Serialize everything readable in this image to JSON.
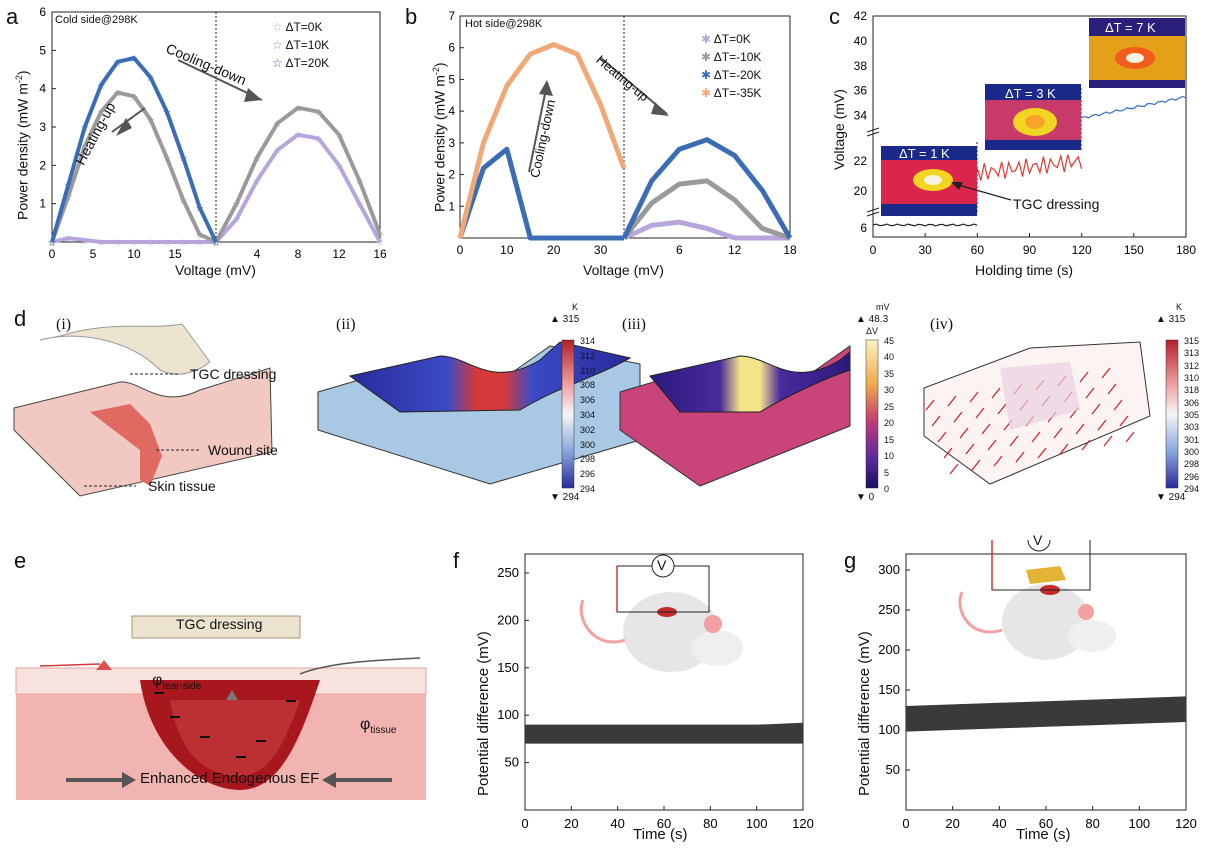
{
  "panels": {
    "a": {
      "letter": "a",
      "note": "Cold side@298K",
      "xlabel": "Voltage (mV)",
      "ylabel": "Power density (mW m",
      "ylabel_sup": "-2",
      "ylabel_end": ")",
      "arrow_up": "Heating-up",
      "arrow_down": "Cooling-down",
      "legend": [
        "ΔT=0K",
        "ΔT=10K",
        "ΔT=20K"
      ],
      "yticks": [
        "1",
        "2",
        "3",
        "4",
        "5",
        "6"
      ],
      "xticks": [
        "0",
        "5",
        "10",
        "15",
        "4",
        "8",
        "12",
        "16"
      ]
    },
    "b": {
      "letter": "b",
      "note": "Hot side@298K",
      "xlabel": "Voltage (mV)",
      "ylabel": "Power density (mW m",
      "ylabel_sup": "-2",
      "ylabel_end": ")",
      "arrow_up": "Cooling-down",
      "arrow_down": "Heating-up",
      "legend": [
        "ΔT=0K",
        "ΔT=-10K",
        "ΔT=-20K",
        "ΔT=-35K"
      ],
      "yticks": [
        "1",
        "2",
        "3",
        "4",
        "5",
        "6",
        "7"
      ],
      "xticks": [
        "0",
        "10",
        "20",
        "30",
        "6",
        "12",
        "18"
      ]
    },
    "c": {
      "letter": "c",
      "xlabel": "Holding time (s)",
      "ylabel": "Voltage (mV)",
      "yticks_top": [
        "34",
        "36",
        "38",
        "40",
        "42"
      ],
      "yticks_mid": [
        "20",
        "22"
      ],
      "ytick_bot": "6",
      "xticks": [
        "0",
        "30",
        "60",
        "90",
        "120",
        "150",
        "180"
      ],
      "inset_labels": [
        "ΔT = 1 K",
        "ΔT = 3 K",
        "ΔT = 7 K"
      ],
      "callout": "TGC dressing"
    },
    "d": {
      "letter": "d",
      "sub": [
        "(i)",
        "(ii)",
        "(iii)",
        "(iv)"
      ],
      "labels_i": [
        "TGC dressing",
        "Wound site",
        "Skin tissue"
      ],
      "scale_ii": {
        "unit": "K",
        "max": "▲ 315",
        "min": "▼ 294",
        "ticks": [
          "314",
          "312",
          "310",
          "308",
          "306",
          "304",
          "302",
          "300",
          "298",
          "296",
          "294"
        ]
      },
      "scale_iii": {
        "unit": "mV",
        "max": "▲ 48.3",
        "unit2": "ΔV",
        "min": "▼ 0",
        "ticks": [
          "45",
          "40",
          "35",
          "30",
          "25",
          "20",
          "15",
          "10",
          "5",
          "0"
        ]
      },
      "scale_iv": {
        "unit": "K",
        "max": "▲ 315",
        "min": "▼ 294",
        "ticks": [
          "315",
          "313",
          "312",
          "310",
          "318",
          "306",
          "305",
          "303",
          "301",
          "300",
          "298",
          "296",
          "294"
        ]
      }
    },
    "e": {
      "letter": "e",
      "dressing": "TGC dressing",
      "phi_tear": "φ",
      "phi_tear_sub": "tear-side",
      "phi_tissue": "φ",
      "phi_tissue_sub": "tissue",
      "ef": "Enhanced Endogenous EF",
      "meter": "V"
    },
    "f": {
      "letter": "f",
      "xlabel": "Time (s)",
      "ylabel": "Potential difference (mV)",
      "meter": "V",
      "yticks": [
        "50",
        "100",
        "150",
        "200",
        "250"
      ],
      "xticks": [
        "0",
        "20",
        "40",
        "60",
        "80",
        "100",
        "120"
      ]
    },
    "g": {
      "letter": "g",
      "xlabel": "Time (s)",
      "ylabel": "Potential difference (mV)",
      "meter": "V",
      "yticks": [
        "50",
        "100",
        "150",
        "200",
        "250",
        "300"
      ],
      "xticks": [
        "0",
        "20",
        "40",
        "60",
        "80",
        "100",
        "120"
      ]
    }
  },
  "colors": {
    "blue": "#3b6db5",
    "gray": "#9a9a9a",
    "lavender": "#b7a6dd",
    "orange": "#f0a878",
    "red": "#d9342b",
    "dark": "#3a3a3a"
  },
  "chart_data": [
    {
      "type": "line",
      "panel": "a",
      "title": "",
      "xlabel": "Voltage (mV)",
      "ylabel": "Power density (mW m-2)",
      "ylim": [
        0,
        6
      ],
      "x_left": [
        0,
        2,
        4,
        6,
        8,
        10,
        12,
        14,
        16,
        18,
        20
      ],
      "x_right": [
        0,
        2,
        4,
        6,
        8,
        10,
        12,
        14,
        16
      ],
      "series": [
        {
          "name": "ΔT=0K",
          "left": [
            0,
            0.1,
            0.05,
            0,
            0,
            0,
            0,
            0,
            0,
            0,
            0
          ],
          "right": [
            0,
            0.6,
            1.6,
            2.4,
            2.8,
            2.7,
            2.0,
            1.0,
            0
          ]
        },
        {
          "name": "ΔT=10K",
          "left": [
            0,
            1.2,
            2.5,
            3.4,
            3.9,
            3.8,
            3.2,
            2.2,
            1.1,
            0.2,
            0
          ],
          "right": [
            0,
            1.0,
            2.2,
            3.1,
            3.5,
            3.4,
            2.8,
            1.6,
            0.2
          ]
        },
        {
          "name": "ΔT=20K",
          "left": [
            0,
            1.5,
            3.0,
            4.1,
            4.7,
            4.8,
            4.3,
            3.4,
            2.2,
            0.9,
            0
          ],
          "right": []
        }
      ]
    },
    {
      "type": "line",
      "panel": "b",
      "title": "",
      "xlabel": "Voltage (mV)",
      "ylabel": "Power density (mW m-2)",
      "ylim": [
        0,
        7
      ],
      "x_left": [
        0,
        5,
        10,
        15,
        20,
        25,
        30,
        35
      ],
      "x_right": [
        0,
        3,
        6,
        9,
        12,
        15,
        18
      ],
      "series": [
        {
          "name": "ΔT=0K",
          "left": [],
          "right": [
            0,
            0.4,
            0.5,
            0.3,
            0,
            0,
            0
          ]
        },
        {
          "name": "ΔT=-10K",
          "left": [],
          "right": [
            0,
            1.1,
            1.7,
            1.8,
            1.2,
            0.3,
            0
          ]
        },
        {
          "name": "ΔT=-20K",
          "left": [
            0,
            2.2,
            2.8,
            0,
            0,
            0,
            0,
            0
          ],
          "right": [
            0,
            1.8,
            2.8,
            3.1,
            2.6,
            1.5,
            0
          ]
        },
        {
          "name": "ΔT=-35K",
          "left": [
            0,
            3.0,
            4.8,
            5.8,
            6.1,
            5.8,
            4.2,
            2.2
          ],
          "right": []
        }
      ]
    },
    {
      "type": "line",
      "panel": "c",
      "title": "",
      "xlabel": "Holding time (s)",
      "ylabel": "Voltage (mV)",
      "x": [
        0,
        30,
        60,
        90,
        120,
        150,
        180
      ],
      "y": [
        6.4,
        6.6,
        19.5,
        21.5,
        33.6,
        34.8,
        35.5
      ],
      "segments": [
        {
          "x": [
            0,
            60
          ],
          "y_approx": 6.5
        },
        {
          "x": [
            60,
            120
          ],
          "y_approx": 21.5
        },
        {
          "x": [
            120,
            180
          ],
          "y_approx": 34.5
        }
      ]
    },
    {
      "type": "line",
      "panel": "f",
      "title": "",
      "xlabel": "Time (s)",
      "ylabel": "Potential difference (mV)",
      "ylim": [
        0,
        250
      ],
      "xlim": [
        0,
        120
      ],
      "x": [
        0,
        20,
        40,
        60,
        80,
        100,
        120
      ],
      "y_band": [
        [
          70,
          90
        ],
        [
          70,
          90
        ],
        [
          70,
          90
        ],
        [
          70,
          90
        ],
        [
          70,
          90
        ],
        [
          70,
          90
        ],
        [
          70,
          92
        ]
      ]
    },
    {
      "type": "line",
      "panel": "g",
      "title": "",
      "xlabel": "Time (s)",
      "ylabel": "Potential difference (mV)",
      "ylim": [
        0,
        300
      ],
      "xlim": [
        0,
        120
      ],
      "x": [
        0,
        20,
        40,
        60,
        80,
        100,
        120
      ],
      "y_band": [
        [
          98,
          130
        ],
        [
          100,
          132
        ],
        [
          102,
          134
        ],
        [
          104,
          136
        ],
        [
          106,
          138
        ],
        [
          108,
          140
        ],
        [
          110,
          142
        ]
      ]
    }
  ]
}
